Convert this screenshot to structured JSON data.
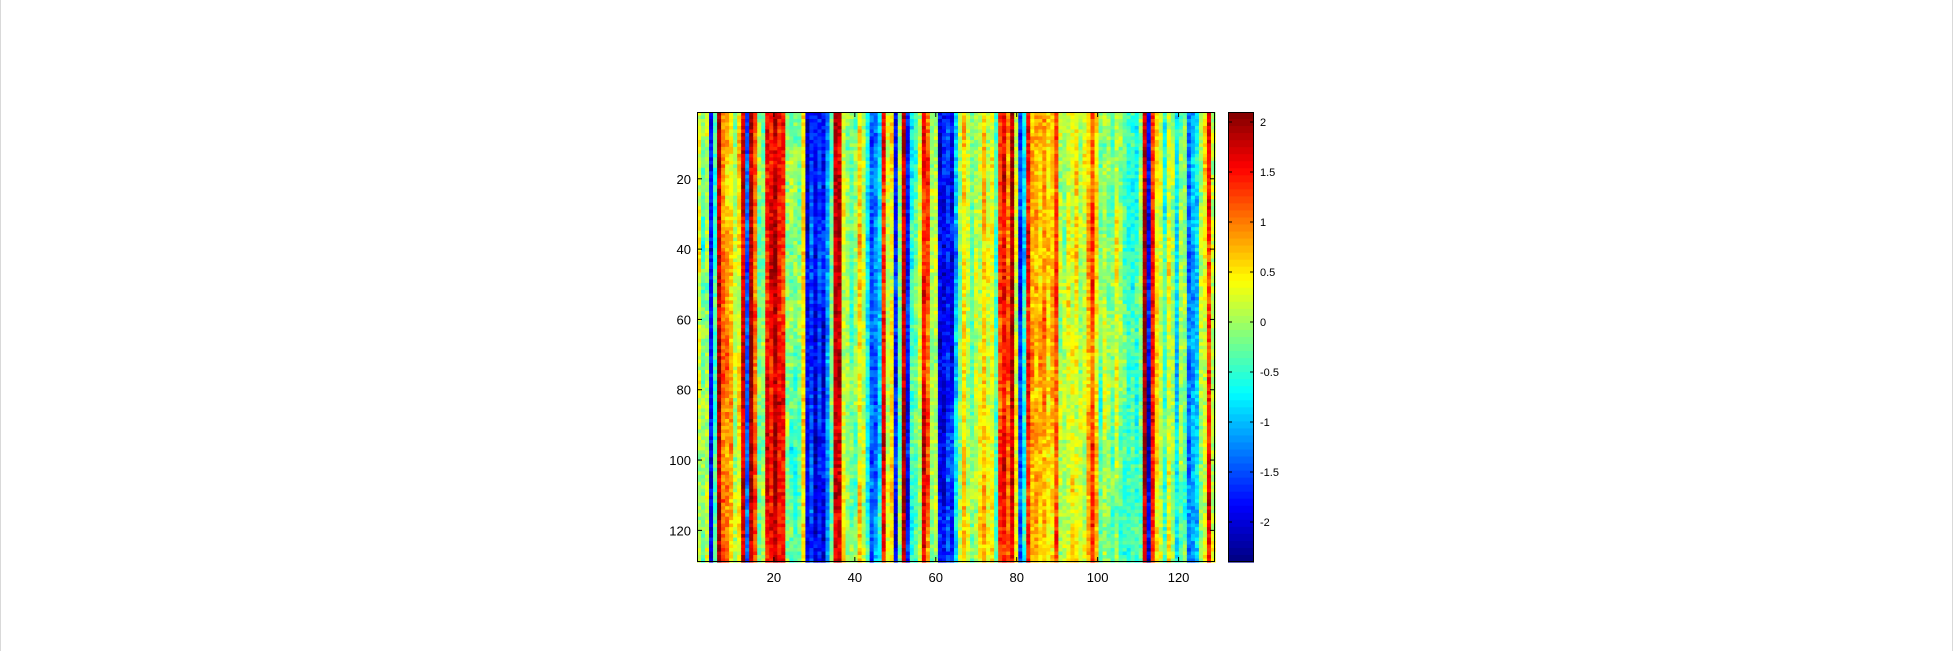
{
  "chart_data": {
    "type": "heatmap",
    "title": "",
    "xlabel": "",
    "ylabel": "",
    "xlim": [
      1,
      129
    ],
    "ylim": [
      1,
      129
    ],
    "y_axis_reversed": true,
    "x_ticks": [
      20,
      40,
      60,
      80,
      100,
      120
    ],
    "x_tick_labels": [
      "20",
      "40",
      "60",
      "80",
      "100",
      "120"
    ],
    "y_ticks": [
      20,
      40,
      60,
      80,
      100,
      120
    ],
    "y_tick_labels": [
      "20",
      "40",
      "60",
      "80",
      "100",
      "120"
    ],
    "colormap": "jet",
    "colorbar": {
      "range": [
        -2.4,
        2.1
      ],
      "ticks": [
        2,
        1.5,
        1,
        0.5,
        0,
        -0.5,
        -1,
        -1.5,
        -2
      ],
      "tick_labels": [
        "2",
        "1.5",
        "1",
        "0.5",
        "0",
        "-0.5",
        "-1",
        "-1.5",
        "-2"
      ]
    },
    "grid": false,
    "column_profile_note_values": {
      "strong_positive_columns": [
        6,
        12,
        14,
        18,
        19,
        20,
        21,
        22,
        35,
        36,
        47,
        52,
        57,
        76,
        77,
        79,
        83,
        90,
        99,
        112,
        114,
        128
      ],
      "strong_negative_columns": [
        4,
        13,
        28,
        29,
        30,
        31,
        32,
        44,
        45,
        50,
        53,
        61,
        62,
        63,
        64,
        81,
        113,
        123
      ]
    }
  }
}
